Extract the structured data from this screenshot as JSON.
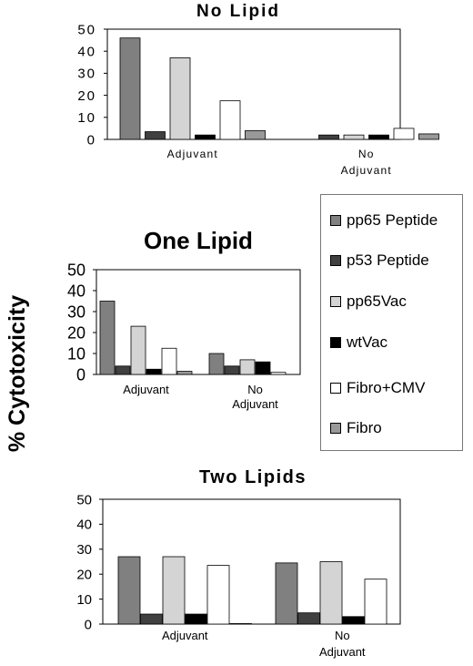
{
  "y_axis_label": "% Cytotoxicity",
  "legend": [
    {
      "name": "pp65 Peptide",
      "color": "#808080"
    },
    {
      "name": "p53 Peptide",
      "color": "#404040"
    },
    {
      "name": "pp65Vac",
      "color": "#d4d4d4"
    },
    {
      "name": "wtVac",
      "color": "#000000"
    },
    {
      "name": "Fibro+CMV",
      "color": "#ffffff"
    },
    {
      "name": "Fibro",
      "color": "#999999"
    }
  ],
  "chart_data": [
    {
      "type": "bar",
      "title": "No Lipid",
      "categories": [
        "Adjuvant",
        "No Adjuvant"
      ],
      "ylim": [
        0,
        50
      ],
      "yticks": [
        0,
        10,
        20,
        30,
        40,
        50
      ],
      "series": [
        {
          "name": "pp65 Peptide",
          "values": [
            46,
            0
          ]
        },
        {
          "name": "p53 Peptide",
          "values": [
            3.5,
            2
          ]
        },
        {
          "name": "pp65Vac",
          "values": [
            37,
            2
          ]
        },
        {
          "name": "wtVac",
          "values": [
            2,
            2
          ]
        },
        {
          "name": "Fibro+CMV",
          "values": [
            17.5,
            5
          ]
        },
        {
          "name": "Fibro",
          "values": [
            4,
            2.5
          ]
        }
      ]
    },
    {
      "type": "bar",
      "title": "One Lipid",
      "categories": [
        "Adjuvant",
        "No Adjuvant"
      ],
      "ylim": [
        0,
        50
      ],
      "yticks": [
        0,
        10,
        20,
        30,
        40,
        50
      ],
      "series": [
        {
          "name": "pp65 Peptide",
          "values": [
            35,
            10
          ]
        },
        {
          "name": "p53 Peptide",
          "values": [
            4,
            4
          ]
        },
        {
          "name": "pp65Vac",
          "values": [
            23,
            7
          ]
        },
        {
          "name": "wtVac",
          "values": [
            2.5,
            6
          ]
        },
        {
          "name": "Fibro+CMV",
          "values": [
            12.5,
            1
          ]
        },
        {
          "name": "Fibro",
          "values": [
            1.5,
            0
          ]
        }
      ]
    },
    {
      "type": "bar",
      "title": "Two Lipids",
      "categories": [
        "Adjuvant",
        "No Adjuvant"
      ],
      "ylim": [
        0,
        50
      ],
      "yticks": [
        0,
        10,
        20,
        30,
        40,
        50
      ],
      "series": [
        {
          "name": "pp65 Peptide",
          "values": [
            27,
            24.5
          ]
        },
        {
          "name": "p53 Peptide",
          "values": [
            4,
            4.5
          ]
        },
        {
          "name": "pp65Vac",
          "values": [
            27,
            25
          ]
        },
        {
          "name": "wtVac",
          "values": [
            4,
            3
          ]
        },
        {
          "name": "Fibro+CMV",
          "values": [
            23.5,
            18
          ]
        },
        {
          "name": "Fibro",
          "values": [
            0.2,
            0
          ]
        }
      ]
    }
  ]
}
